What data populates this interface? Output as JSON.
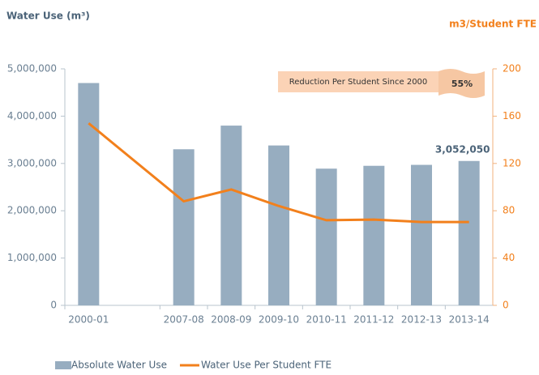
{
  "chart_data": {
    "type": "bar",
    "y_axis_label": "Water Use (m³)",
    "y2_axis_label": "m3/Student FTE",
    "categories": [
      "2000-01",
      "2007-08",
      "2008-09",
      "2009-10",
      "2010-11",
      "2011-12",
      "2012-13",
      "2013-14"
    ],
    "series": [
      {
        "name": "Absolute Water Use",
        "type": "bar",
        "color": "#97adc0",
        "values": [
          4700000,
          3300000,
          3800000,
          3380000,
          2890000,
          2950000,
          2970000,
          3052050
        ],
        "value_labels": [
          null,
          null,
          null,
          null,
          null,
          null,
          null,
          "3,052,050"
        ]
      },
      {
        "name": "Water Use Per Student FTE",
        "type": "line",
        "axis": "y2",
        "color": "#f2801c",
        "values": [
          154,
          88,
          98,
          84,
          72,
          72.5,
          70.5,
          70.5
        ]
      }
    ],
    "ylim": [
      0,
      5000000
    ],
    "yticks": [
      0,
      {
        "value": 1000000,
        "label": "1,000,000"
      },
      {
        "value": 2000000,
        "label": "2,000,000"
      },
      {
        "value": 3000000,
        "label": "3,000,000"
      },
      {
        "value": 4000000,
        "label": "4,000,000"
      },
      {
        "value": 5000000,
        "label": "5,000,000"
      }
    ],
    "y2lim": [
      0,
      200
    ],
    "y2ticks": [
      0,
      40,
      80,
      120,
      160,
      200
    ],
    "annotation": {
      "text": "Reduction Per Student Since 2000",
      "value": "55%"
    },
    "legend": "bottom"
  }
}
